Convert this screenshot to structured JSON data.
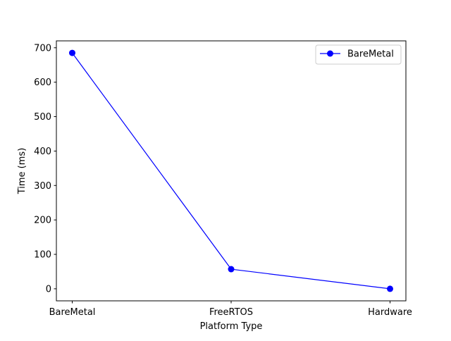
{
  "chart_data": {
    "type": "line",
    "title": "",
    "xlabel": "Platform Type",
    "ylabel": "Time (ms)",
    "categories": [
      "BareMetal",
      "FreeRTOS",
      "Hardware"
    ],
    "ylim": [
      -35,
      720
    ],
    "yticks": [
      0,
      100,
      200,
      300,
      400,
      500,
      600,
      700
    ],
    "series": [
      {
        "name": "BareMetal",
        "color": "#0000ff",
        "marker": "circle",
        "values": [
          685,
          57,
          0
        ]
      }
    ],
    "legend": "top-right",
    "grid": false
  }
}
